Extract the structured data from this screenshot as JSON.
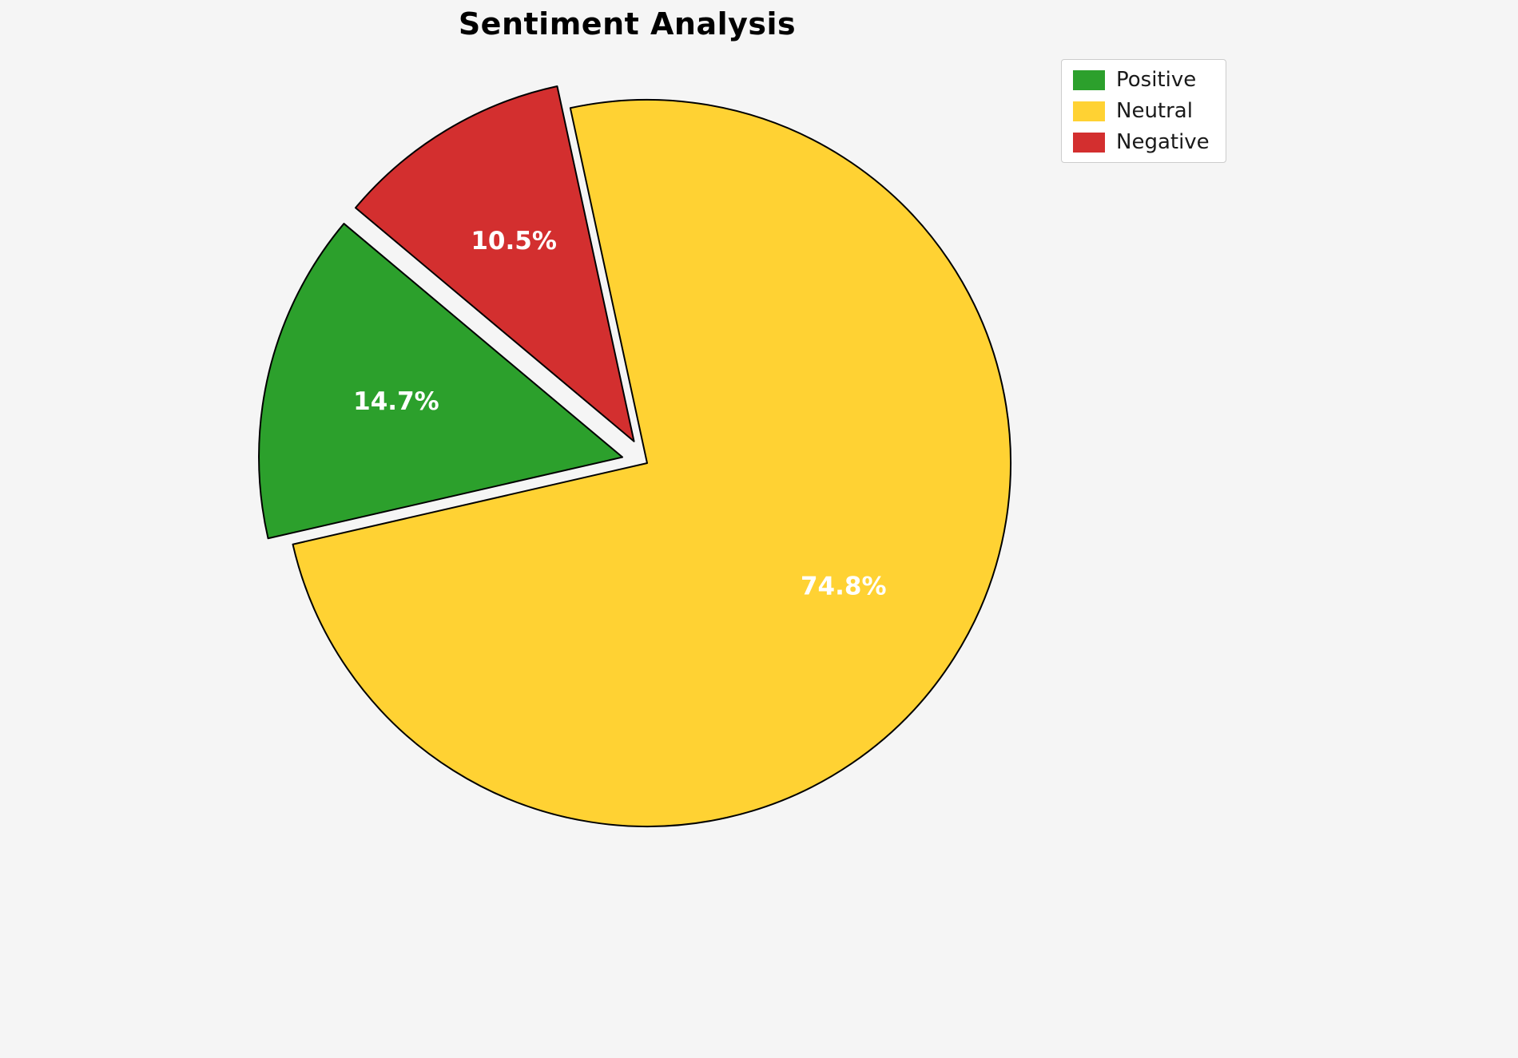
{
  "chart_data": {
    "type": "pie",
    "title": "Sentiment Analysis",
    "labels": [
      "Positive",
      "Neutral",
      "Negative"
    ],
    "values": [
      14.7,
      74.8,
      10.5
    ],
    "percent_labels": [
      "14.7%",
      "74.8%",
      "10.5%"
    ],
    "colors": [
      "#2ca02c",
      "#ffd233",
      "#d32f2f"
    ],
    "explode": [
      0.07,
      0,
      0.07
    ],
    "start_angle": 140,
    "direction": "counterclockwise",
    "slice_edge_color": "#000000",
    "label_color": "#ffffff",
    "legend_position": "upper right",
    "legend_entries": [
      "Positive",
      "Neutral",
      "Negative"
    ],
    "background": "#f5f5f5"
  }
}
